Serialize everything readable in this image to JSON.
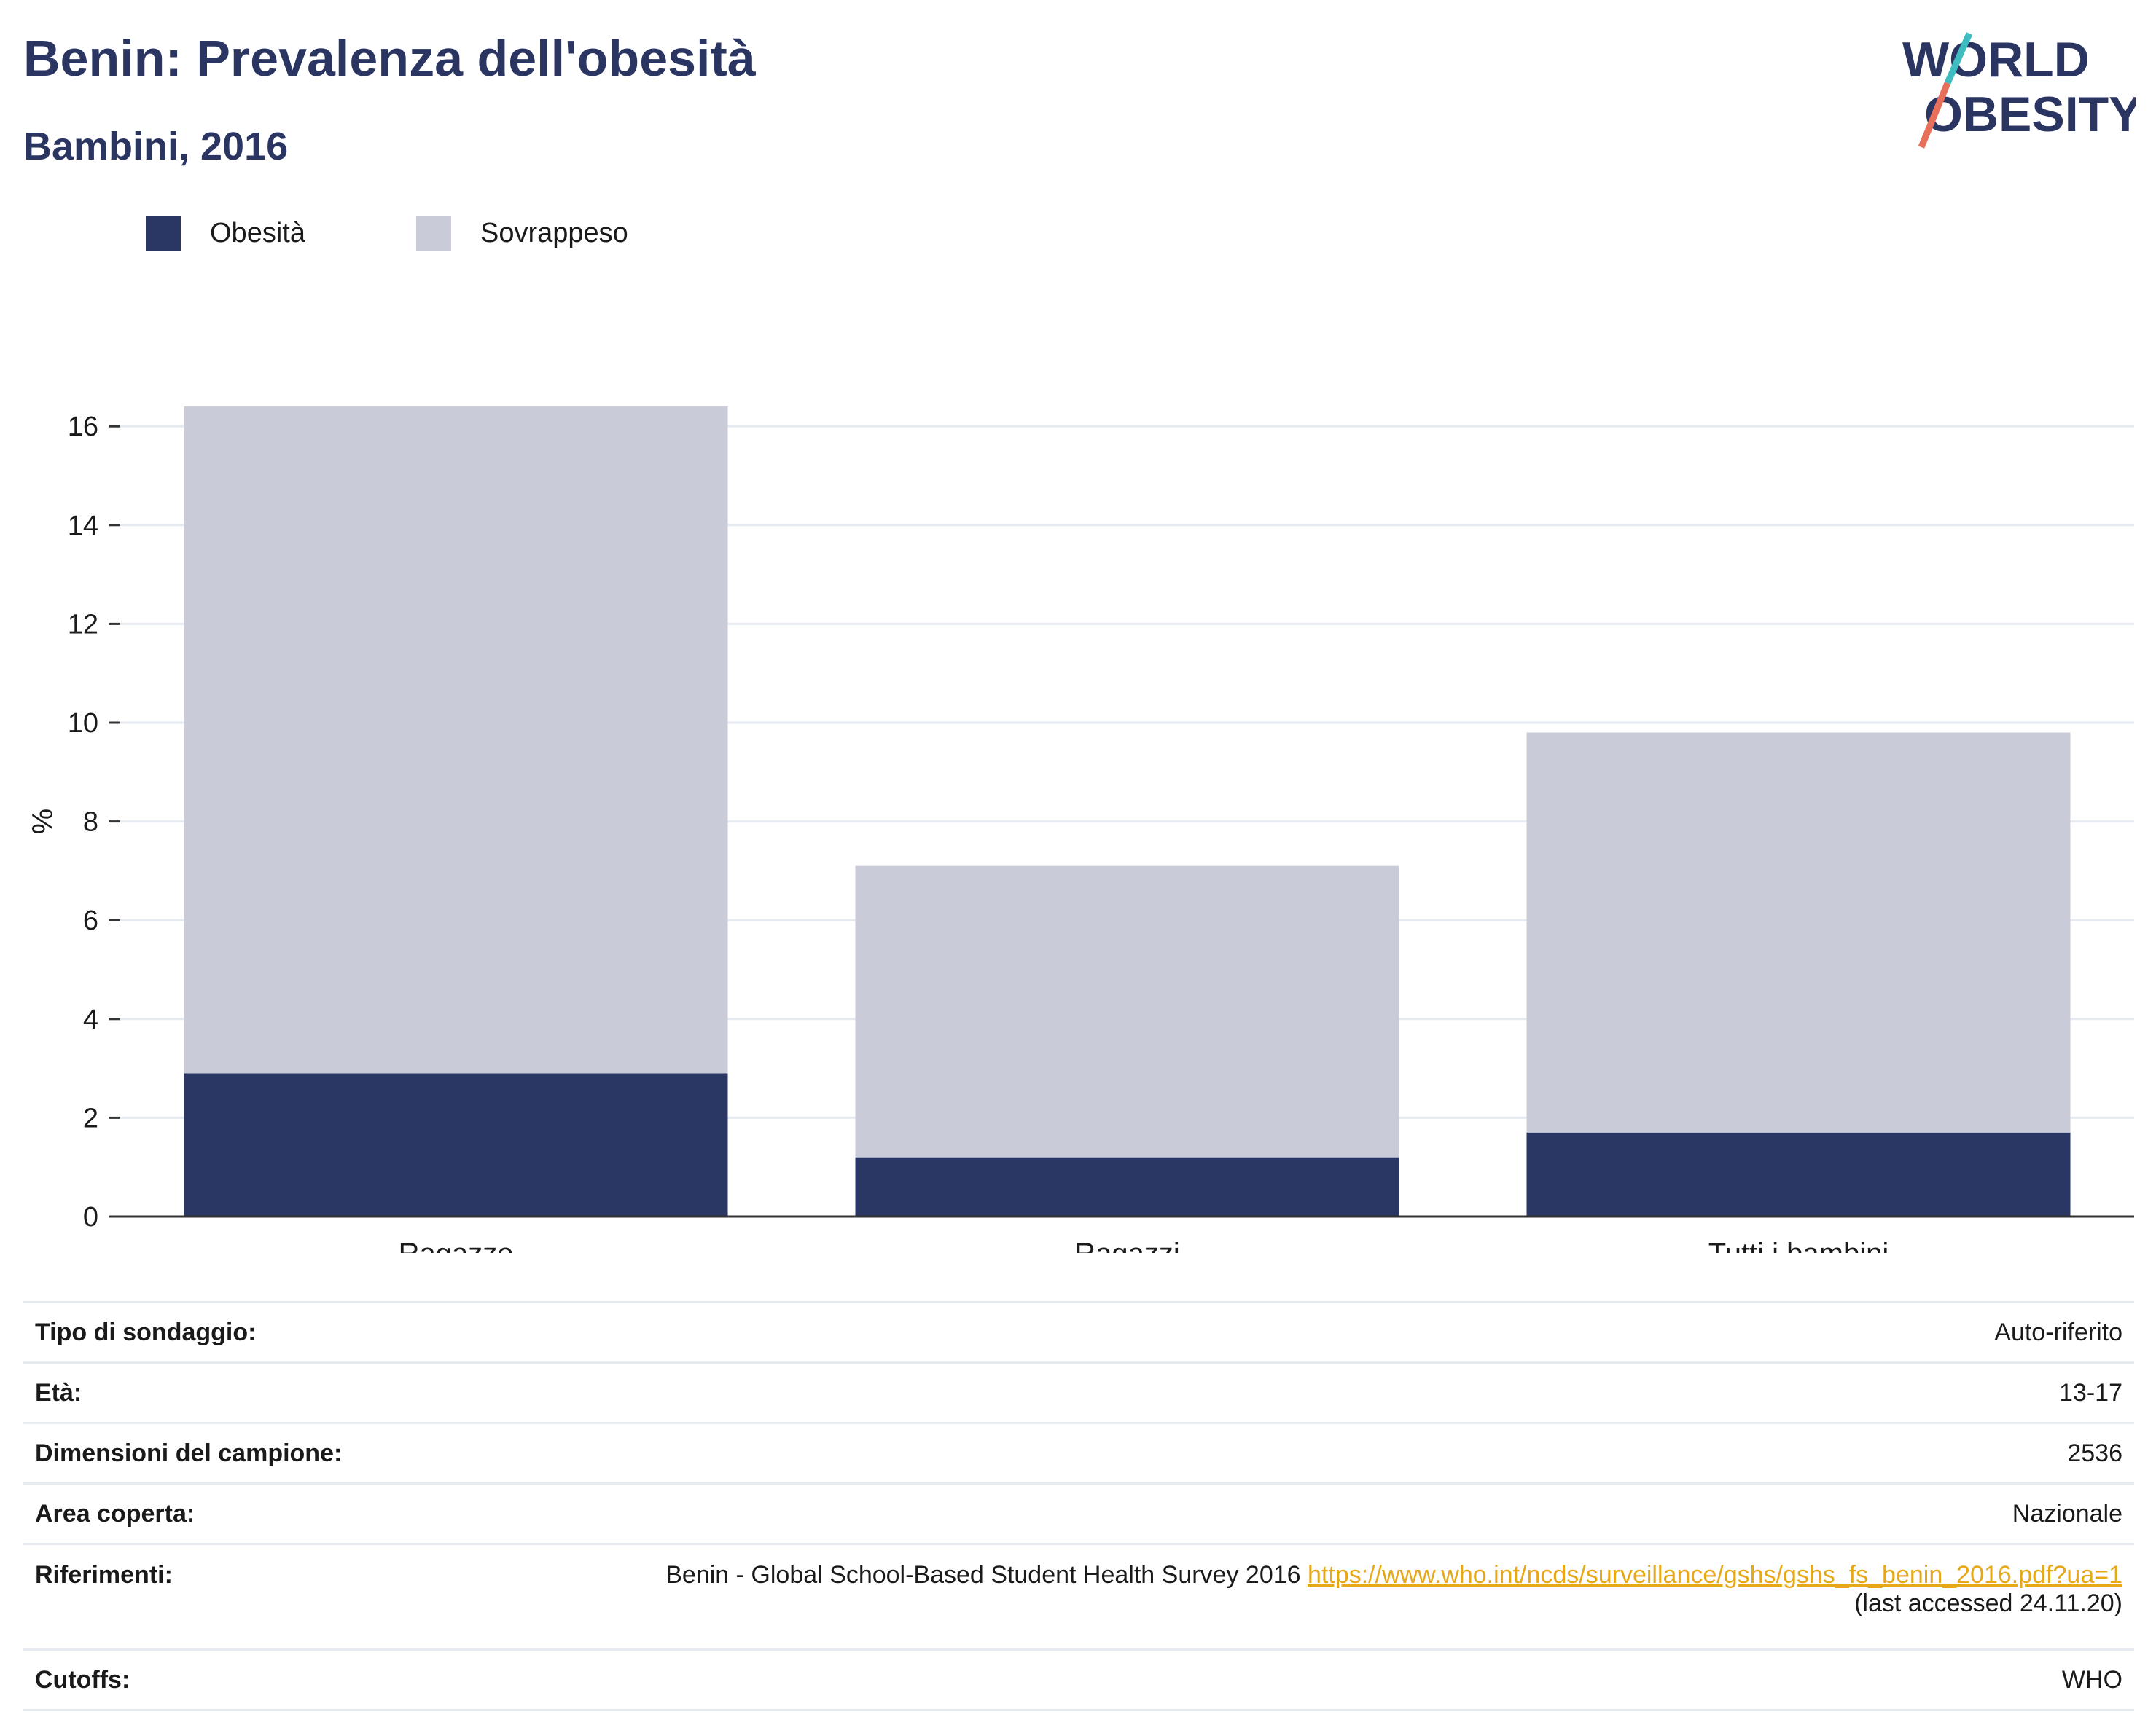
{
  "header": {
    "title": "Benin: Prevalenza dell'obesità",
    "subtitle": "Bambini, 2016",
    "logo_line1": "WORLD",
    "logo_line2": "OBESITY"
  },
  "colors": {
    "obesity": "#2a3663",
    "overweight": "#c9ccd8",
    "title": "#2b3562",
    "link": "#e6a817",
    "logo_teal": "#3fbcc0",
    "logo_coral": "#e8705a"
  },
  "chart_data": {
    "type": "bar",
    "stacked": true,
    "categories": [
      "Ragazze",
      "Ragazzi",
      "Tutti i bambini"
    ],
    "series": [
      {
        "name": "Obesità",
        "values": [
          2.9,
          1.2,
          1.7
        ],
        "color": "#2a3663"
      },
      {
        "name": "Sovrappeso",
        "values": [
          13.5,
          5.9,
          8.1
        ],
        "color": "#c9ccd8"
      }
    ],
    "totals": [
      16.4,
      7.1,
      9.8
    ],
    "ylabel": "%",
    "ylim": [
      0,
      16.5
    ],
    "yticks": [
      0,
      2,
      4,
      6,
      8,
      10,
      12,
      14,
      16
    ],
    "grid": true,
    "legend_position": "top-left"
  },
  "meta": {
    "survey_type_label": "Tipo di sondaggio:",
    "survey_type_value": "Auto-riferito",
    "age_label": "Età:",
    "age_value": "13-17",
    "sample_label": "Dimensioni del campione:",
    "sample_value": "2536",
    "area_label": "Area coperta:",
    "area_value": "Nazionale",
    "refs_label": "Riferimenti:",
    "refs_text": "Benin - Global School-Based Student Health Survey 2016",
    "refs_link": "https://www.who.int/ncds/surveillance/gshs/gshs_fs_benin_2016.pdf?ua=1",
    "refs_accessed": "(last accessed 24.11.20)",
    "cutoffs_label": "Cutoffs:",
    "cutoffs_value": "WHO"
  }
}
